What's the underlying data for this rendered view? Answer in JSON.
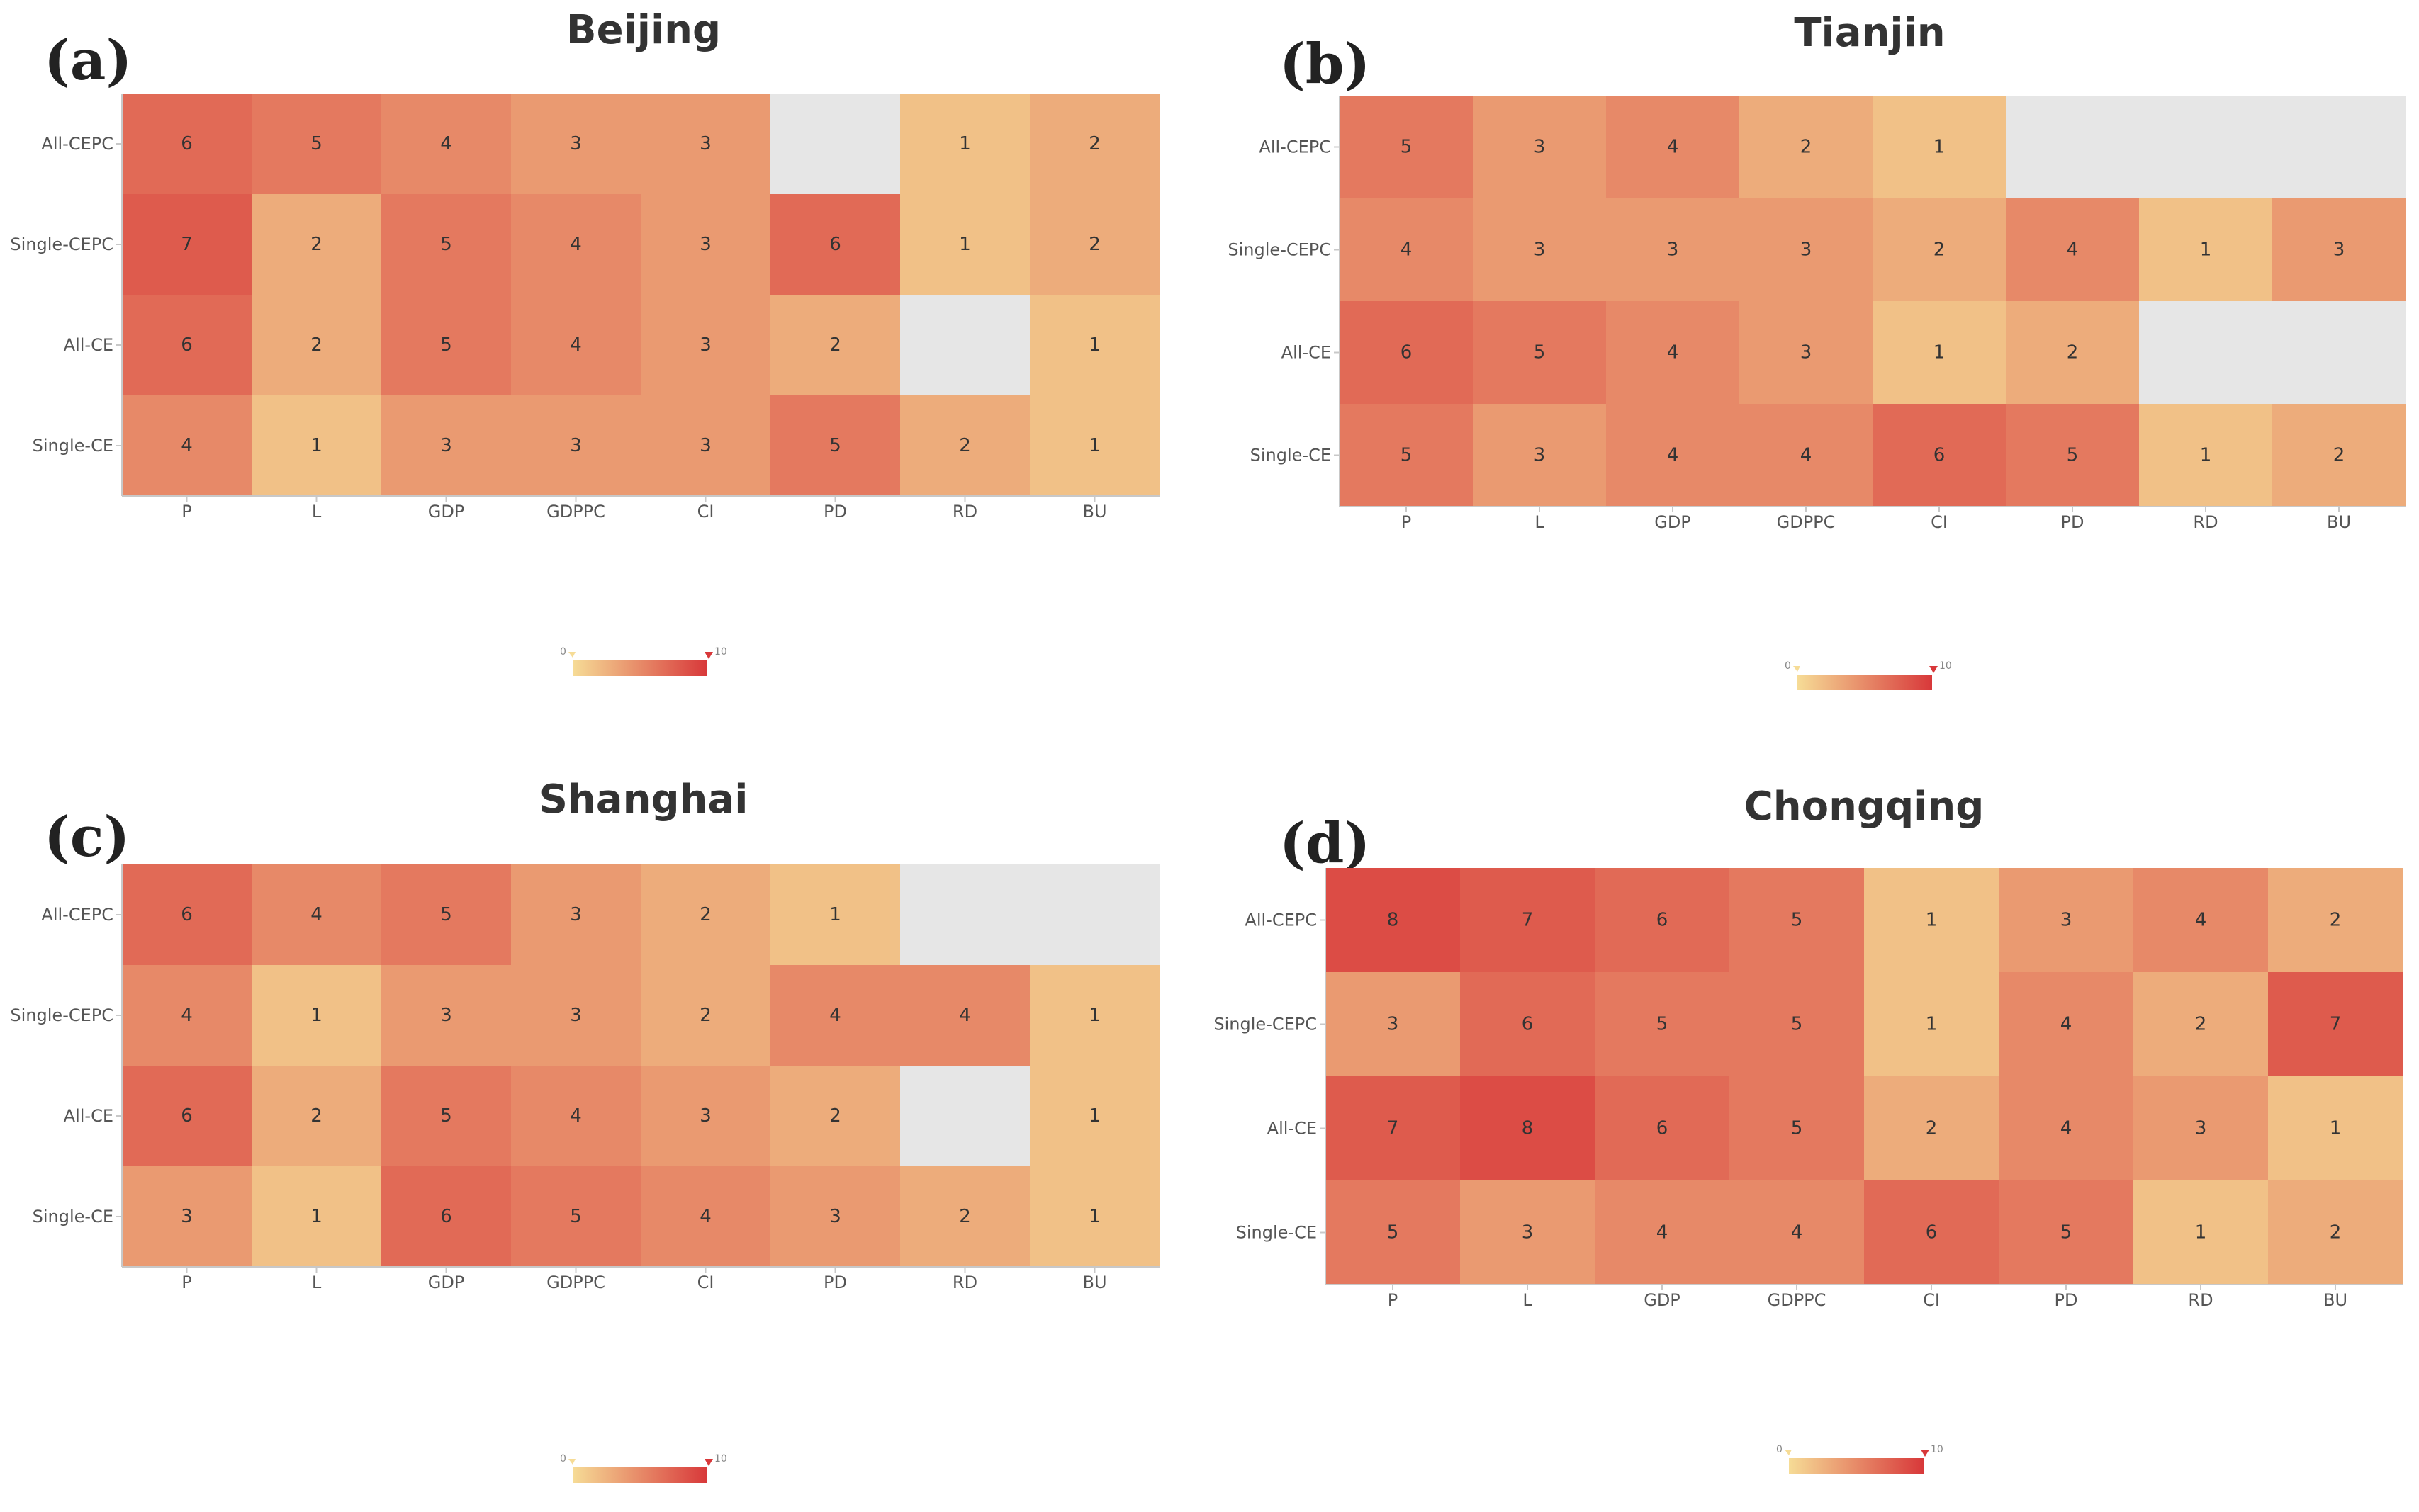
{
  "chart_data": [
    {
      "type": "heatmap",
      "label": "(a)",
      "title": "Beijing",
      "rows": [
        "All-CEPC",
        "Single-CEPC",
        "All-CE",
        "Single-CE"
      ],
      "columns": [
        "P",
        "L",
        "GDP",
        "GDPPC",
        "CI",
        "PD",
        "RD",
        "BU"
      ],
      "values": [
        [
          6,
          5,
          4,
          3,
          3,
          null,
          1,
          2
        ],
        [
          7,
          2,
          5,
          4,
          3,
          6,
          1,
          2
        ],
        [
          6,
          2,
          5,
          4,
          3,
          2,
          null,
          1
        ],
        [
          4,
          1,
          3,
          3,
          3,
          5,
          2,
          1
        ]
      ],
      "colorscale": {
        "min": 0,
        "max": 10,
        "min_label": "0",
        "max_label": "10"
      }
    },
    {
      "type": "heatmap",
      "label": "(b)",
      "title": "Tianjin",
      "rows": [
        "All-CEPC",
        "Single-CEPC",
        "All-CE",
        "Single-CE"
      ],
      "columns": [
        "P",
        "L",
        "GDP",
        "GDPPC",
        "CI",
        "PD",
        "RD",
        "BU"
      ],
      "values": [
        [
          5,
          3,
          4,
          2,
          1,
          null,
          null,
          null
        ],
        [
          4,
          3,
          3,
          3,
          2,
          4,
          1,
          3
        ],
        [
          6,
          5,
          4,
          3,
          1,
          2,
          null,
          null
        ],
        [
          5,
          3,
          4,
          4,
          6,
          5,
          1,
          2
        ]
      ],
      "colorscale": {
        "min": 0,
        "max": 10,
        "min_label": "0",
        "max_label": "10"
      }
    },
    {
      "type": "heatmap",
      "label": "(c)",
      "title": "Shanghai",
      "rows": [
        "All-CEPC",
        "Single-CEPC",
        "All-CE",
        "Single-CE"
      ],
      "columns": [
        "P",
        "L",
        "GDP",
        "GDPPC",
        "CI",
        "PD",
        "RD",
        "BU"
      ],
      "values": [
        [
          6,
          4,
          5,
          3,
          2,
          1,
          null,
          null
        ],
        [
          4,
          1,
          3,
          3,
          2,
          4,
          4,
          1
        ],
        [
          6,
          2,
          5,
          4,
          3,
          2,
          null,
          1
        ],
        [
          3,
          1,
          6,
          5,
          4,
          3,
          2,
          1
        ]
      ],
      "colorscale": {
        "min": 0,
        "max": 10,
        "min_label": "0",
        "max_label": "10"
      }
    },
    {
      "type": "heatmap",
      "label": "(d)",
      "title": "Chongqing",
      "rows": [
        "All-CEPC",
        "Single-CEPC",
        "All-CE",
        "Single-CE"
      ],
      "columns": [
        "P",
        "L",
        "GDP",
        "GDPPC",
        "CI",
        "PD",
        "RD",
        "BU"
      ],
      "values": [
        [
          8,
          7,
          6,
          5,
          1,
          3,
          4,
          2
        ],
        [
          3,
          6,
          5,
          5,
          1,
          4,
          2,
          7
        ],
        [
          7,
          8,
          6,
          5,
          2,
          4,
          3,
          1
        ],
        [
          5,
          3,
          4,
          4,
          6,
          5,
          1,
          2
        ]
      ],
      "colorscale": {
        "min": 0,
        "max": 10,
        "min_label": "0",
        "max_label": "10"
      }
    }
  ],
  "colors": {
    "low": "#f6dc96",
    "high": "#d8383a",
    "empty": "#e6e6e6",
    "axis": "#c8c8c8"
  }
}
